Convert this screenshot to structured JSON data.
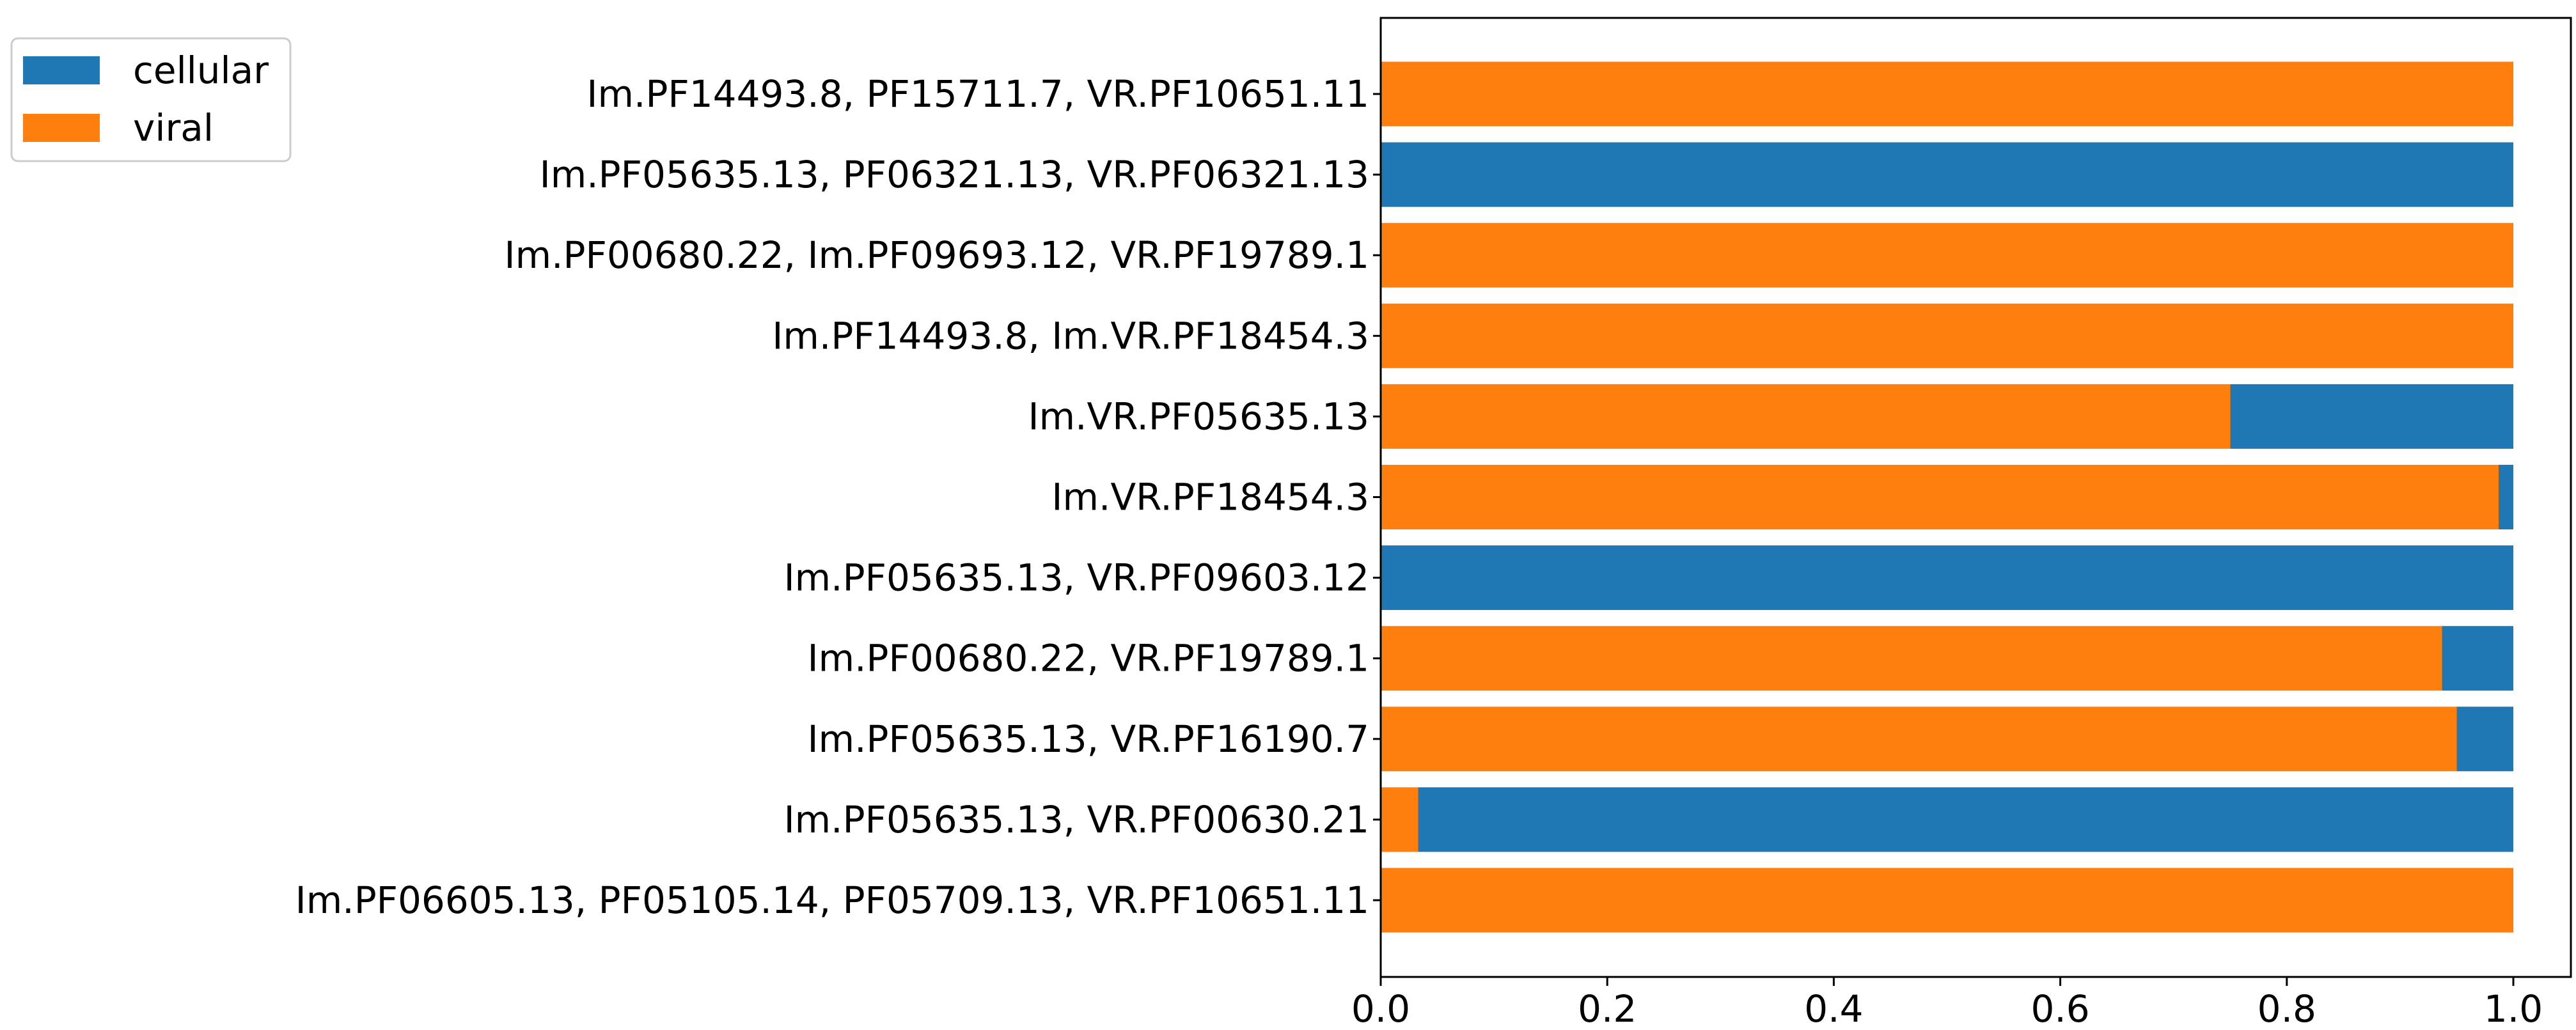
{
  "chart_data": {
    "type": "bar",
    "orientation": "horizontal",
    "stacked": true,
    "title": "",
    "xlabel": "",
    "ylabel": "",
    "xlim": [
      0.0,
      1.05
    ],
    "xticks": [
      0.0,
      0.2,
      0.4,
      0.6,
      0.8,
      1.0
    ],
    "xtick_labels": [
      "0.0",
      "0.2",
      "0.4",
      "0.6",
      "0.8",
      "1.0"
    ],
    "legend_position": "top-left",
    "colors": {
      "cellular": "#1f77b4",
      "viral": "#ff7f0e",
      "axis": "#000000"
    },
    "categories": [
      "Im.PF14493.8, PF15711.7, VR.PF10651.11",
      "Im.PF05635.13, PF06321.13, VR.PF06321.13",
      "Im.PF00680.22, Im.PF09693.12, VR.PF19789.1",
      "Im.PF14493.8, Im.VR.PF18454.3",
      "Im.VR.PF05635.13",
      "Im.VR.PF18454.3",
      "Im.PF05635.13, VR.PF09603.12",
      "Im.PF00680.22, VR.PF19789.1",
      "Im.PF05635.13, VR.PF16190.7",
      "Im.PF05635.13, VR.PF00630.21",
      "Im.PF06605.13, PF05105.14, PF05709.13, VR.PF10651.11"
    ],
    "series": [
      {
        "name": "viral",
        "values": [
          1.0,
          0.0,
          1.0,
          1.0,
          0.75,
          0.987,
          0.0,
          0.937,
          0.95,
          0.033,
          1.0
        ]
      },
      {
        "name": "cellular",
        "values": [
          0.0,
          1.0,
          0.0,
          0.0,
          0.25,
          0.013,
          1.0,
          0.063,
          0.05,
          0.967,
          0.0
        ]
      }
    ],
    "legend": [
      "cellular",
      "viral"
    ]
  }
}
